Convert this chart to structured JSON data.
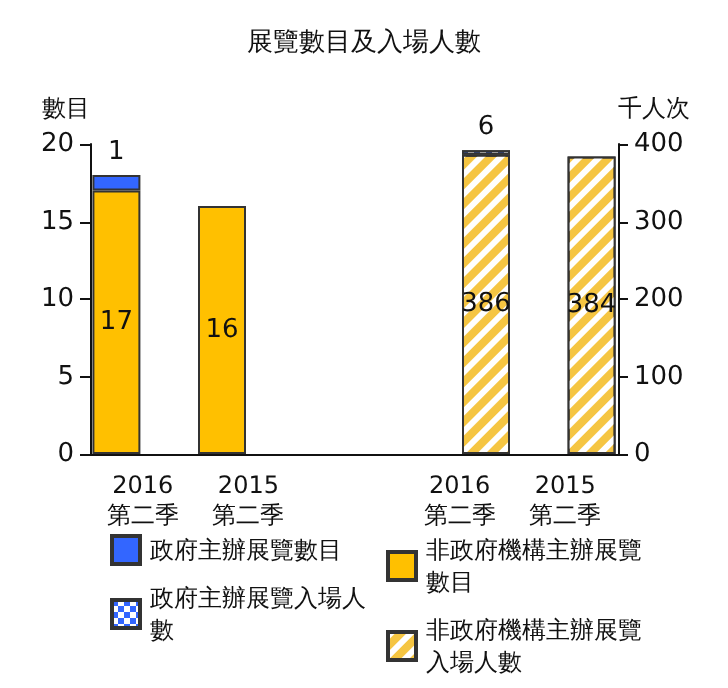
{
  "chart_data": {
    "type": "bar",
    "title": "展覽數目及入場人數",
    "ylabel": "數目",
    "y2label": "千人次",
    "categories": [
      "2016\n第二季",
      "2015\n第二季",
      null,
      "2016\n第二季",
      "2015\n第二季"
    ],
    "stacked": true,
    "data_labels": true,
    "grid": false,
    "legend": "bottom",
    "ylim": [
      0,
      20
    ],
    "yticks": [
      0,
      5,
      10,
      15,
      20
    ],
    "y2lim": [
      0,
      400
    ],
    "y2ticks": [
      0,
      100,
      200,
      300,
      400
    ],
    "series": [
      {
        "name": "非政府機構主辦展覽數目",
        "color": "#ffc000",
        "values": [
          17,
          16,
          null,
          null,
          null
        ]
      },
      {
        "name": "政府主辦展覽數目",
        "color": "#3366ff",
        "values": [
          1,
          null,
          null,
          null,
          null
        ]
      },
      {
        "name": "非政府機構主辦展覽入場人數",
        "color": "#f5c542",
        "axis": "y2",
        "values": [
          null,
          null,
          null,
          386,
          384
        ]
      },
      {
        "name": "政府主辦展覽入場人數",
        "color": "#3366ff",
        "axis": "y2",
        "values": [
          null,
          null,
          null,
          6,
          null
        ]
      }
    ]
  }
}
